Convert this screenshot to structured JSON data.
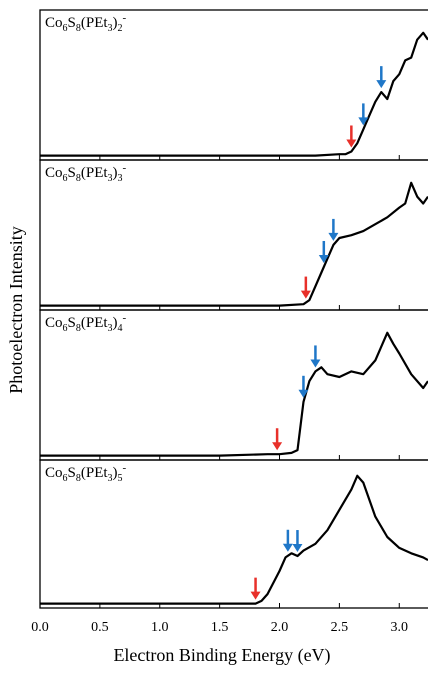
{
  "chart_data": [
    {
      "type": "line",
      "title": "Co6S8(PEt3)2-",
      "xlim": [
        0,
        3.24
      ],
      "ylim": [
        0,
        1
      ],
      "color": "#000000",
      "x": [
        0.0,
        0.5,
        1.0,
        1.5,
        2.0,
        2.3,
        2.5,
        2.55,
        2.6,
        2.65,
        2.7,
        2.75,
        2.8,
        2.85,
        2.9,
        2.95,
        3.0,
        3.05,
        3.1,
        3.15,
        3.2,
        3.24
      ],
      "values": [
        0.01,
        0.01,
        0.01,
        0.01,
        0.01,
        0.01,
        0.02,
        0.02,
        0.04,
        0.1,
        0.2,
        0.3,
        0.4,
        0.47,
        0.42,
        0.55,
        0.6,
        0.7,
        0.72,
        0.85,
        0.9,
        0.85
      ],
      "markers": [
        {
          "x": 2.6,
          "color": "#e8302a"
        },
        {
          "x": 2.7,
          "color": "#1f77c8"
        },
        {
          "x": 2.85,
          "color": "#1f77c8"
        }
      ]
    },
    {
      "type": "line",
      "title": "Co6S8(PEt3)3-",
      "xlim": [
        0,
        3.24
      ],
      "ylim": [
        0,
        1
      ],
      "color": "#000000",
      "x": [
        0.0,
        0.5,
        1.0,
        1.5,
        2.0,
        2.2,
        2.25,
        2.3,
        2.35,
        2.4,
        2.45,
        2.5,
        2.6,
        2.7,
        2.8,
        2.9,
        3.0,
        3.05,
        3.1,
        3.15,
        3.2,
        3.24
      ],
      "values": [
        0.01,
        0.01,
        0.01,
        0.01,
        0.01,
        0.02,
        0.05,
        0.15,
        0.25,
        0.35,
        0.45,
        0.5,
        0.52,
        0.55,
        0.6,
        0.65,
        0.72,
        0.75,
        0.9,
        0.8,
        0.75,
        0.8
      ],
      "markers": [
        {
          "x": 2.22,
          "color": "#e8302a"
        },
        {
          "x": 2.37,
          "color": "#1f77c8"
        },
        {
          "x": 2.45,
          "color": "#1f77c8"
        }
      ]
    },
    {
      "type": "line",
      "title": "Co6S8(PEt3)4-",
      "xlim": [
        0,
        3.24
      ],
      "ylim": [
        0,
        1
      ],
      "color": "#000000",
      "x": [
        0.0,
        0.5,
        1.0,
        1.5,
        1.9,
        2.0,
        2.1,
        2.15,
        2.2,
        2.25,
        2.3,
        2.35,
        2.4,
        2.5,
        2.6,
        2.7,
        2.8,
        2.9,
        2.95,
        3.0,
        3.1,
        3.2,
        3.24
      ],
      "values": [
        0.01,
        0.01,
        0.01,
        0.01,
        0.02,
        0.02,
        0.03,
        0.05,
        0.4,
        0.55,
        0.62,
        0.65,
        0.6,
        0.58,
        0.62,
        0.6,
        0.7,
        0.9,
        0.82,
        0.75,
        0.6,
        0.5,
        0.55
      ],
      "markers": [
        {
          "x": 1.98,
          "color": "#e8302a"
        },
        {
          "x": 2.2,
          "color": "#1f77c8"
        },
        {
          "x": 2.3,
          "color": "#1f77c8"
        }
      ]
    },
    {
      "type": "line",
      "title": "Co6S8(PEt3)5-",
      "xlim": [
        0,
        3.24
      ],
      "ylim": [
        0,
        1
      ],
      "color": "#000000",
      "x": [
        0.0,
        0.5,
        1.0,
        1.5,
        1.8,
        1.85,
        1.9,
        2.0,
        2.05,
        2.1,
        2.15,
        2.2,
        2.3,
        2.4,
        2.5,
        2.6,
        2.65,
        2.7,
        2.8,
        2.9,
        3.0,
        3.1,
        3.2,
        3.24
      ],
      "values": [
        0.01,
        0.01,
        0.01,
        0.01,
        0.01,
        0.03,
        0.08,
        0.25,
        0.35,
        0.38,
        0.36,
        0.4,
        0.45,
        0.55,
        0.7,
        0.85,
        0.95,
        0.9,
        0.65,
        0.5,
        0.42,
        0.38,
        0.35,
        0.33
      ],
      "markers": [
        {
          "x": 1.8,
          "color": "#e8302a"
        },
        {
          "x": 2.07,
          "color": "#1f77c8"
        },
        {
          "x": 2.15,
          "color": "#1f77c8"
        }
      ],
      "xticks": [
        {
          "value": 0,
          "label": "0.0"
        },
        0.5,
        {
          "value": 1,
          "label": "1.0"
        },
        1.5,
        {
          "value": 2,
          "label": "2.0"
        },
        2.5,
        {
          "value": 3,
          "label": "3.0"
        }
      ],
      "xlabel": "Electron Binding Energy (eV)",
      "ylabel": "Photoelectron Intensity"
    }
  ]
}
